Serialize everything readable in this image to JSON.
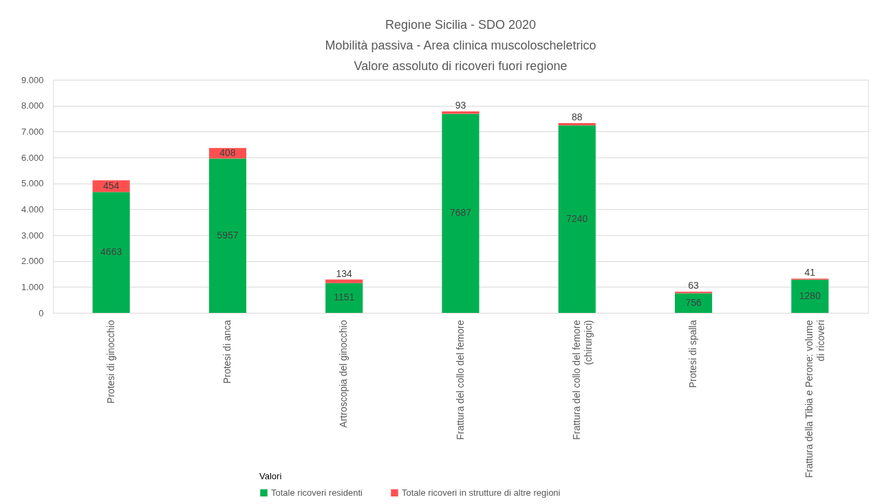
{
  "chart_data": {
    "type": "bar",
    "title": "Regione Sicilia - SDO 2020\nMobilità passiva - Area clinica muscoloscheletrico\nValore assoluto di ricoveri fuori regione",
    "categories": [
      "Protesi di ginocchio",
      "Protesi di anca",
      "Artroscopia del ginocchio",
      "Frattura del collo del femore",
      "Frattura del collo del femore (chirurgici)",
      "Protesi di spalla",
      "Frattura della Tibia e Perone: volume di ricoveri"
    ],
    "series": [
      {
        "name": "Totale ricoveri residenti",
        "color": "#00b050",
        "values": [
          4663,
          5957,
          1151,
          7687,
          7240,
          756,
          1280
        ]
      },
      {
        "name": "Totale ricoveri in strutture di altre regioni",
        "color": "#ff5050",
        "values": [
          454,
          408,
          134,
          93,
          88,
          63,
          41
        ]
      }
    ],
    "stacked": true,
    "ylim": [
      0,
      9000
    ],
    "yticks": [
      0,
      {
        "value": 1000,
        "label": "1.000"
      },
      {
        "value": 2000,
        "label": "2.000"
      },
      {
        "value": 3000,
        "label": "3.000"
      },
      {
        "value": 4000,
        "label": "4.000"
      },
      {
        "value": 5000,
        "label": "5.000"
      },
      {
        "value": 6000,
        "label": "6.000"
      },
      {
        "value": 7000,
        "label": "7.000"
      },
      {
        "value": 8000,
        "label": "8.000"
      },
      {
        "value": 9000,
        "label": "9.000"
      }
    ],
    "grid": "y",
    "legend": "bottom",
    "legend_title": "Valori",
    "data_labels": true
  }
}
